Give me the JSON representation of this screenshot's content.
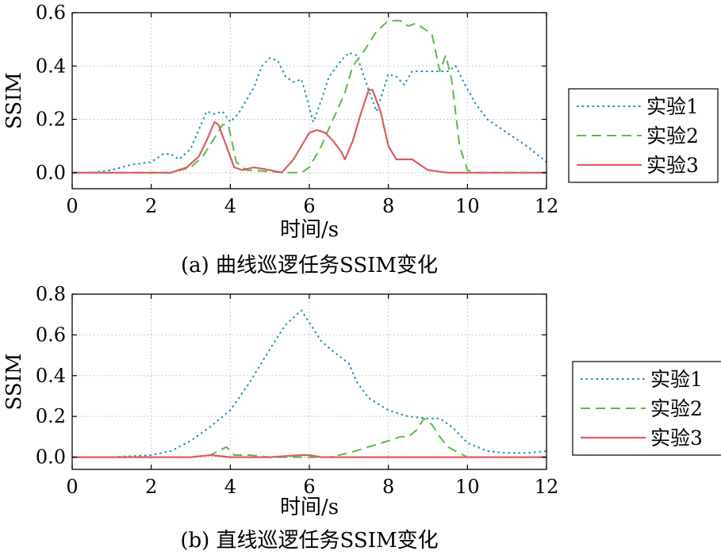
{
  "chart_data": [
    {
      "type": "line",
      "caption": "(a) 曲线巡逻任务SSIM变化",
      "xlabel": "时间/s",
      "ylabel": "SSIM",
      "xlim": [
        0,
        12
      ],
      "ylim": [
        -0.06,
        0.6
      ],
      "xticks": [
        0,
        2,
        4,
        6,
        8,
        10,
        12
      ],
      "yticks": [
        0.0,
        0.2,
        0.4,
        0.6
      ],
      "xtick_labels": [
        "0",
        "2",
        "4",
        "6",
        "8",
        "10",
        "12"
      ],
      "ytick_labels": [
        "0.0",
        "0.2",
        "0.4",
        "0.6"
      ],
      "grid": true,
      "legend_position": "outside-right",
      "series": [
        {
          "name": "实验1",
          "color": "#1f8fb4",
          "dash": "dotted",
          "points": [
            [
              0,
              0.0
            ],
            [
              0.5,
              0.0
            ],
            [
              1.0,
              0.01
            ],
            [
              1.5,
              0.03
            ],
            [
              2.0,
              0.04
            ],
            [
              2.3,
              0.07
            ],
            [
              2.5,
              0.07
            ],
            [
              2.7,
              0.05
            ],
            [
              3.0,
              0.09
            ],
            [
              3.2,
              0.16
            ],
            [
              3.4,
              0.23
            ],
            [
              3.6,
              0.22
            ],
            [
              3.8,
              0.23
            ],
            [
              4.0,
              0.19
            ],
            [
              4.2,
              0.22
            ],
            [
              4.4,
              0.27
            ],
            [
              4.6,
              0.32
            ],
            [
              4.8,
              0.4
            ],
            [
              5.0,
              0.43
            ],
            [
              5.2,
              0.42
            ],
            [
              5.4,
              0.36
            ],
            [
              5.6,
              0.34
            ],
            [
              5.8,
              0.35
            ],
            [
              5.9,
              0.3
            ],
            [
              6.1,
              0.19
            ],
            [
              6.3,
              0.27
            ],
            [
              6.5,
              0.36
            ],
            [
              6.8,
              0.42
            ],
            [
              7.0,
              0.45
            ],
            [
              7.2,
              0.44
            ],
            [
              7.5,
              0.31
            ],
            [
              7.7,
              0.23
            ],
            [
              8.0,
              0.37
            ],
            [
              8.2,
              0.36
            ],
            [
              8.4,
              0.33
            ],
            [
              8.6,
              0.38
            ],
            [
              9.0,
              0.38
            ],
            [
              9.5,
              0.38
            ],
            [
              9.7,
              0.4
            ],
            [
              9.9,
              0.34
            ],
            [
              10.2,
              0.26
            ],
            [
              10.5,
              0.2
            ],
            [
              11.0,
              0.15
            ],
            [
              11.5,
              0.1
            ],
            [
              12.0,
              0.04
            ]
          ]
        },
        {
          "name": "实验2",
          "color": "#5fb848",
          "dash": "dashed",
          "points": [
            [
              0,
              0.0
            ],
            [
              2.5,
              0.0
            ],
            [
              3.0,
              0.02
            ],
            [
              3.3,
              0.06
            ],
            [
              3.6,
              0.13
            ],
            [
              3.8,
              0.18
            ],
            [
              3.95,
              0.18
            ],
            [
              4.15,
              0.04
            ],
            [
              4.4,
              0.01
            ],
            [
              5.5,
              0.0
            ],
            [
              5.8,
              0.0
            ],
            [
              6.0,
              0.02
            ],
            [
              6.3,
              0.1
            ],
            [
              6.6,
              0.2
            ],
            [
              6.9,
              0.3
            ],
            [
              7.1,
              0.4
            ],
            [
              7.4,
              0.46
            ],
            [
              7.7,
              0.53
            ],
            [
              8.0,
              0.57
            ],
            [
              8.3,
              0.57
            ],
            [
              8.5,
              0.55
            ],
            [
              8.7,
              0.56
            ],
            [
              8.9,
              0.54
            ],
            [
              9.1,
              0.52
            ],
            [
              9.3,
              0.38
            ],
            [
              9.45,
              0.44
            ],
            [
              9.6,
              0.35
            ],
            [
              9.8,
              0.1
            ],
            [
              10.0,
              0.01
            ],
            [
              10.2,
              0.0
            ],
            [
              12.0,
              0.0
            ]
          ]
        },
        {
          "name": "实验3",
          "color": "#dd5c5c",
          "dash": "solid",
          "points": [
            [
              0,
              0.0
            ],
            [
              2.5,
              0.0
            ],
            [
              2.9,
              0.02
            ],
            [
              3.2,
              0.06
            ],
            [
              3.4,
              0.12
            ],
            [
              3.6,
              0.19
            ],
            [
              3.7,
              0.18
            ],
            [
              3.9,
              0.1
            ],
            [
              4.1,
              0.02
            ],
            [
              4.3,
              0.01
            ],
            [
              4.6,
              0.02
            ],
            [
              5.0,
              0.01
            ],
            [
              5.3,
              0.0
            ],
            [
              5.6,
              0.05
            ],
            [
              5.8,
              0.1
            ],
            [
              6.0,
              0.15
            ],
            [
              6.2,
              0.16
            ],
            [
              6.4,
              0.15
            ],
            [
              6.6,
              0.12
            ],
            [
              6.8,
              0.08
            ],
            [
              6.9,
              0.05
            ],
            [
              7.1,
              0.12
            ],
            [
              7.3,
              0.22
            ],
            [
              7.5,
              0.31
            ],
            [
              7.6,
              0.31
            ],
            [
              7.8,
              0.23
            ],
            [
              8.0,
              0.1
            ],
            [
              8.2,
              0.05
            ],
            [
              8.6,
              0.05
            ],
            [
              8.8,
              0.03
            ],
            [
              9.0,
              0.01
            ],
            [
              9.5,
              0.0
            ],
            [
              12.0,
              0.0
            ]
          ]
        }
      ]
    },
    {
      "type": "line",
      "caption": "(b) 直线巡逻任务SSIM变化",
      "xlabel": "时间/s",
      "ylabel": "SSIM",
      "xlim": [
        0,
        12
      ],
      "ylim": [
        -0.06,
        0.8
      ],
      "xticks": [
        0,
        2,
        4,
        6,
        8,
        10,
        12
      ],
      "yticks": [
        0.0,
        0.2,
        0.4,
        0.6,
        0.8
      ],
      "xtick_labels": [
        "0",
        "2",
        "4",
        "6",
        "8",
        "10",
        "12"
      ],
      "ytick_labels": [
        "0.0",
        "0.2",
        "0.4",
        "0.6",
        "0.8"
      ],
      "grid": true,
      "legend_position": "outside-right",
      "series": [
        {
          "name": "实验1",
          "color": "#1f8fb4",
          "dash": "dotted",
          "points": [
            [
              0,
              0.0
            ],
            [
              1.0,
              0.0
            ],
            [
              2.0,
              0.01
            ],
            [
              2.5,
              0.03
            ],
            [
              3.0,
              0.08
            ],
            [
              3.5,
              0.15
            ],
            [
              4.0,
              0.23
            ],
            [
              4.5,
              0.37
            ],
            [
              5.0,
              0.53
            ],
            [
              5.4,
              0.65
            ],
            [
              5.8,
              0.72
            ],
            [
              6.0,
              0.66
            ],
            [
              6.3,
              0.57
            ],
            [
              6.6,
              0.52
            ],
            [
              7.0,
              0.46
            ],
            [
              7.2,
              0.37
            ],
            [
              7.5,
              0.29
            ],
            [
              8.0,
              0.23
            ],
            [
              8.5,
              0.2
            ],
            [
              9.0,
              0.19
            ],
            [
              9.3,
              0.19
            ],
            [
              9.6,
              0.15
            ],
            [
              10.0,
              0.07
            ],
            [
              10.5,
              0.03
            ],
            [
              11.0,
              0.02
            ],
            [
              11.5,
              0.02
            ],
            [
              12.0,
              0.03
            ]
          ]
        },
        {
          "name": "实验2",
          "color": "#5fb848",
          "dash": "dashed",
          "points": [
            [
              0,
              0.0
            ],
            [
              3.0,
              0.0
            ],
            [
              3.5,
              0.01
            ],
            [
              3.8,
              0.04
            ],
            [
              3.9,
              0.05
            ],
            [
              4.1,
              0.01
            ],
            [
              4.5,
              0.01
            ],
            [
              5.0,
              0.0
            ],
            [
              6.5,
              0.0
            ],
            [
              7.0,
              0.02
            ],
            [
              7.5,
              0.05
            ],
            [
              8.0,
              0.08
            ],
            [
              8.3,
              0.1
            ],
            [
              8.5,
              0.1
            ],
            [
              8.7,
              0.13
            ],
            [
              8.9,
              0.19
            ],
            [
              9.1,
              0.16
            ],
            [
              9.3,
              0.1
            ],
            [
              9.5,
              0.05
            ],
            [
              9.7,
              0.03
            ],
            [
              10.0,
              0.0
            ],
            [
              12.0,
              0.0
            ]
          ]
        },
        {
          "name": "实验3",
          "color": "#dd5c5c",
          "dash": "solid",
          "points": [
            [
              0,
              0.0
            ],
            [
              3.0,
              0.0
            ],
            [
              3.5,
              0.01
            ],
            [
              4.0,
              0.0
            ],
            [
              5.0,
              0.0
            ],
            [
              5.8,
              0.01
            ],
            [
              6.0,
              0.01
            ],
            [
              6.3,
              0.0
            ],
            [
              12.0,
              0.0
            ]
          ]
        }
      ]
    }
  ]
}
